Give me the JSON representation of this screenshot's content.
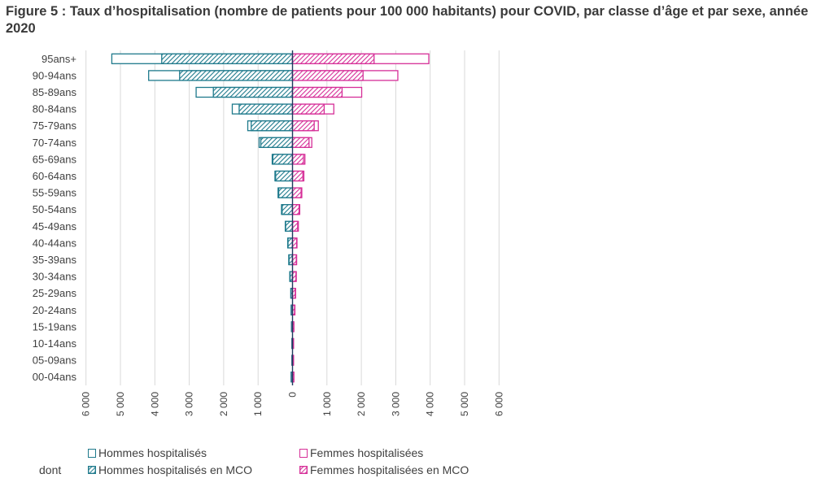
{
  "title": "Figure 5 : Taux d’hospitalisation (nombre de patients pour 100 000 habitants) pour COVID, par classe d’âge et par sexe, année 2020",
  "colors": {
    "men": "#1f7a8c",
    "women": "#d62f98",
    "axis": "#1f3a5f",
    "grid": "#d9d9d9"
  },
  "legend": {
    "dont_label": "dont",
    "items": [
      {
        "label": "Hommes hospitalisés",
        "style": "outline-men"
      },
      {
        "label": "Femmes hospitalisées",
        "style": "outline-women"
      },
      {
        "label": "Hommes hospitalisés en MCO",
        "style": "hatch-men"
      },
      {
        "label": "Femmes hospitalisées en MCO",
        "style": "hatch-women"
      }
    ]
  },
  "chart_data": {
    "type": "bar",
    "orientation": "horizontal-pyramid",
    "categories": [
      "95ans+",
      "90-94ans",
      "85-89ans",
      "80-84ans",
      "75-79ans",
      "70-74ans",
      "65-69ans",
      "60-64ans",
      "55-59ans",
      "50-54ans",
      "45-49ans",
      "40-44ans",
      "35-39ans",
      "30-34ans",
      "25-29ans",
      "20-24ans",
      "15-19ans",
      "10-14ans",
      "05-09ans",
      "00-04ans"
    ],
    "series": [
      {
        "name": "Hommes hospitalisés",
        "side": "left",
        "values": [
          5250,
          4180,
          2800,
          1750,
          1300,
          970,
          590,
          510,
          420,
          320,
          210,
          140,
          110,
          80,
          50,
          40,
          30,
          20,
          20,
          40
        ]
      },
      {
        "name": "Femmes hospitalisées",
        "side": "right",
        "values": [
          3960,
          3060,
          2010,
          1200,
          750,
          560,
          360,
          330,
          270,
          210,
          170,
          130,
          120,
          110,
          90,
          70,
          40,
          30,
          30,
          40
        ]
      },
      {
        "name": "Hommes hospitalisés en MCO",
        "side": "left",
        "values": [
          3800,
          3280,
          2300,
          1550,
          1200,
          920,
          570,
          490,
          400,
          300,
          200,
          130,
          100,
          70,
          45,
          35,
          25,
          18,
          18,
          35
        ]
      },
      {
        "name": "Femmes hospitalisées en MCO",
        "side": "right",
        "values": [
          2370,
          2050,
          1440,
          920,
          630,
          480,
          320,
          300,
          250,
          190,
          150,
          120,
          110,
          100,
          80,
          60,
          35,
          25,
          25,
          35
        ]
      }
    ],
    "xticks": [
      "6 000",
      "5 000",
      "4 000",
      "3 000",
      "2 000",
      "1 000",
      "0",
      "1 000",
      "2 000",
      "3 000",
      "4 000",
      "5 000",
      "6 000"
    ],
    "xlim": [
      -6000,
      6000
    ],
    "grid": true
  }
}
